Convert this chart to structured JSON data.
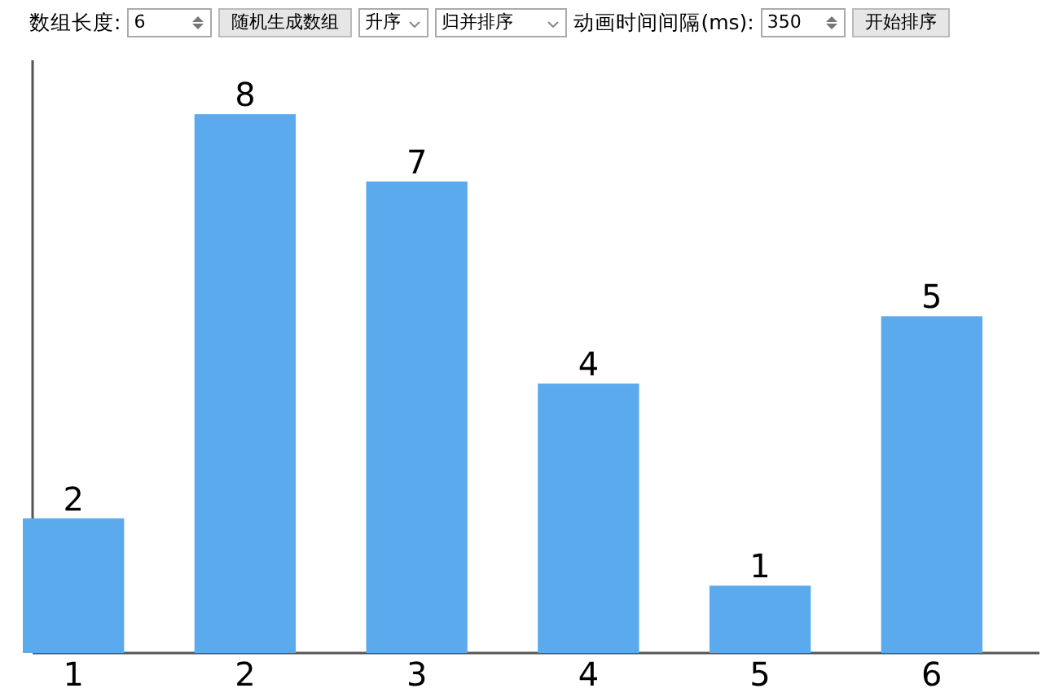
{
  "chart_data": {
    "type": "bar",
    "categories": [
      "1",
      "2",
      "3",
      "4",
      "5",
      "6"
    ],
    "values": [
      2,
      8,
      7,
      4,
      1,
      5
    ],
    "color": "#5aaaed",
    "ylim": [
      0,
      8.8
    ],
    "data_labels": true,
    "tick_labels": "x",
    "annotations": [
      "数组长度:",
      "6",
      "随机生成数组",
      "升序",
      "归并排序",
      "动画时间间隔(ms):",
      "350",
      "开始排序"
    ]
  }
}
